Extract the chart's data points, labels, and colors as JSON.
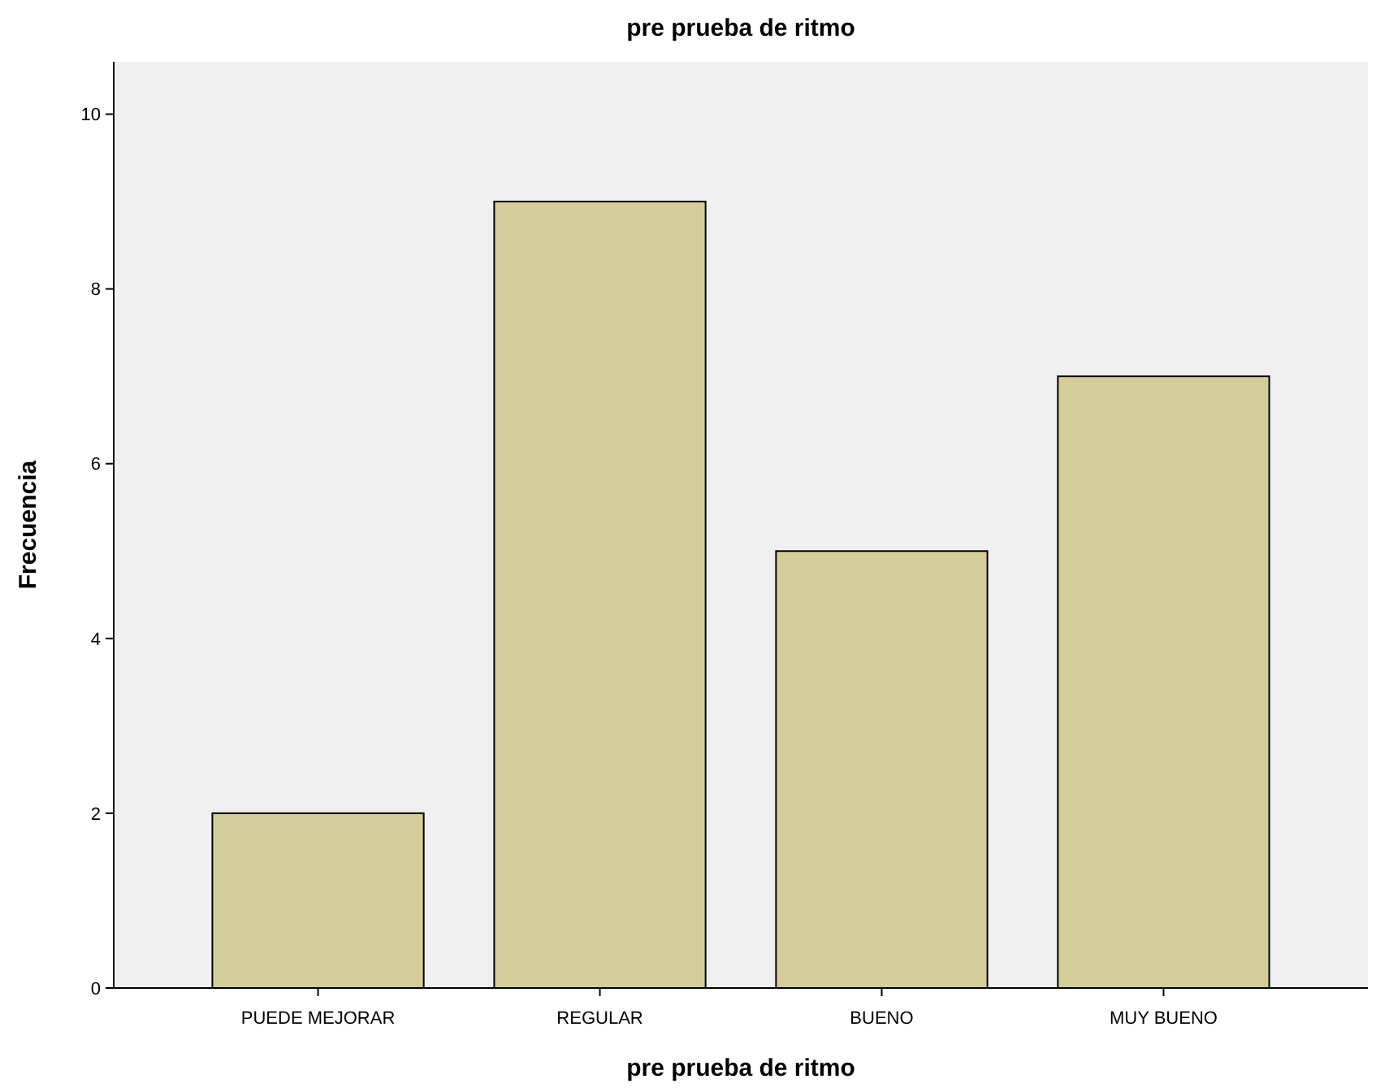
{
  "chart_data": {
    "type": "bar",
    "title": "pre prueba de ritmo",
    "xlabel": "pre prueba de ritmo",
    "ylabel": "Frecuencia",
    "categories": [
      "PUEDE MEJORAR",
      "REGULAR",
      "BUENO",
      "MUY BUENO"
    ],
    "values": [
      2,
      9,
      5,
      7
    ],
    "color": "#d3ce99",
    "ylim": [
      0,
      10.6
    ],
    "yticks": [
      0,
      2,
      4,
      6,
      8,
      10
    ],
    "grid": false
  }
}
